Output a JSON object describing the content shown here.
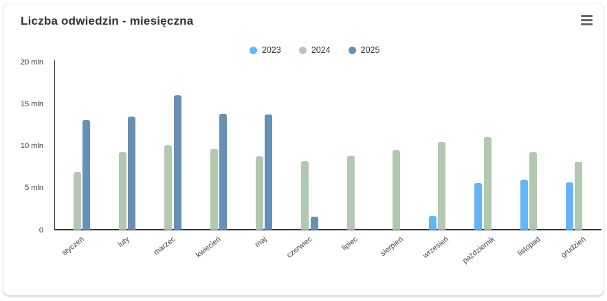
{
  "header": {
    "title": "Liczba odwiedzin - miesięczna",
    "menu_icon": "hamburger-context-menu"
  },
  "chart_data": {
    "type": "bar",
    "title": "Liczba odwiedzin - miesięczna",
    "xlabel": "",
    "ylabel": "",
    "ylim": [
      0,
      20
    ],
    "grid": false,
    "legend_position": "top-center",
    "unit": "mln",
    "categories": [
      "styczeń",
      "luty",
      "marzec",
      "kwiecień",
      "maj",
      "czerwiec",
      "lipiec",
      "sierpień",
      "wrzesień",
      "październik",
      "listopad",
      "grudzień"
    ],
    "series": [
      {
        "name": "2023",
        "color": "#64b5f6",
        "values": [
          null,
          null,
          null,
          null,
          null,
          null,
          null,
          null,
          1.7,
          5.6,
          6.0,
          5.7
        ]
      },
      {
        "name": "2024",
        "color": "#b2c8b0",
        "values": [
          6.9,
          9.3,
          10.1,
          9.7,
          8.8,
          8.2,
          8.9,
          9.5,
          10.5,
          11.1,
          9.3,
          8.1
        ]
      },
      {
        "name": "2025",
        "color": "#6690b5",
        "values": [
          13.1,
          13.5,
          16.1,
          13.9,
          13.8,
          1.6,
          null,
          null,
          null,
          null,
          null,
          null
        ]
      }
    ],
    "yticks": [
      {
        "value": 0,
        "label": "0"
      },
      {
        "value": 5,
        "label": "5 mln"
      },
      {
        "value": 10,
        "label": "10 mln"
      },
      {
        "value": 15,
        "label": "15 mln"
      },
      {
        "value": 20,
        "label": "20 mln"
      }
    ]
  }
}
